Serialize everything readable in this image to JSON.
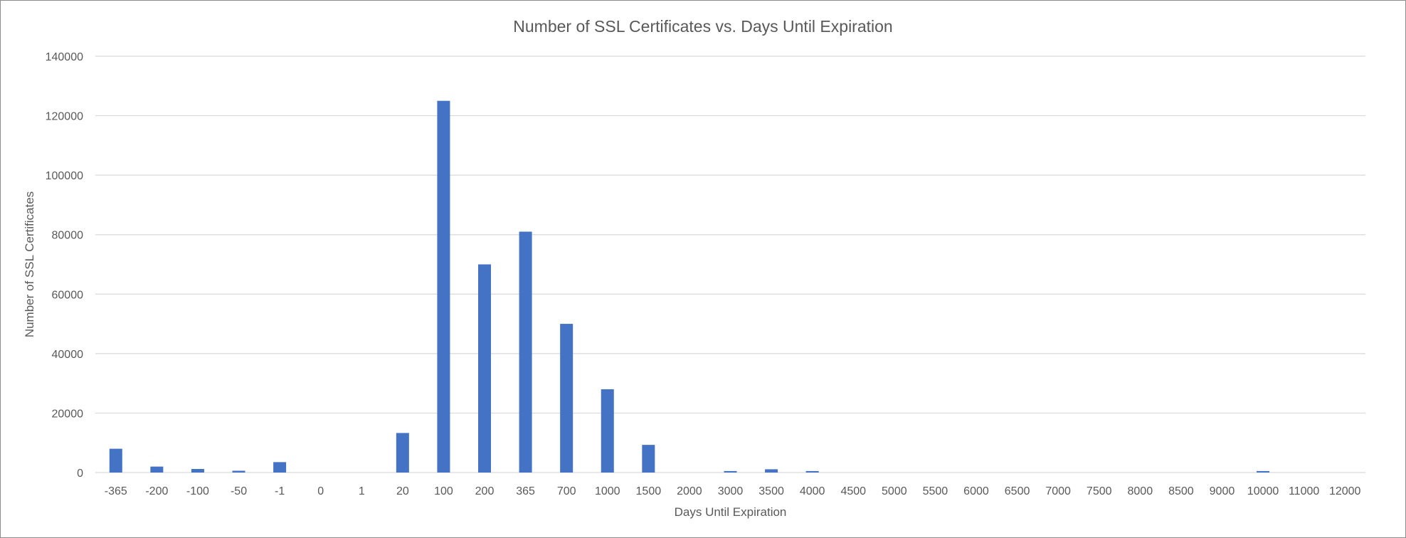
{
  "chart_data": {
    "type": "bar",
    "title": "Number of SSL Certificates vs. Days Until Expiration",
    "xlabel": "Days Until Expiration",
    "ylabel": "Number of SSL Certificates",
    "ylim": [
      0,
      140000
    ],
    "yticks": [
      0,
      20000,
      40000,
      60000,
      80000,
      100000,
      120000,
      140000
    ],
    "grid": true,
    "legend": "none",
    "bar_color": "#4472c4",
    "categories": [
      "-365",
      "-200",
      "-100",
      "-50",
      "-1",
      "0",
      "1",
      "20",
      "100",
      "200",
      "365",
      "700",
      "1000",
      "1500",
      "2000",
      "3000",
      "3500",
      "4000",
      "4500",
      "5000",
      "5500",
      "6000",
      "6500",
      "7000",
      "7500",
      "8000",
      "8500",
      "9000",
      "10000",
      "11000",
      "12000"
    ],
    "series": [
      {
        "values": [
          8000,
          2000,
          1200,
          600,
          3500,
          0,
          0,
          13300,
          125000,
          70000,
          81000,
          50000,
          28000,
          9300,
          0,
          500,
          1100,
          500,
          0,
          0,
          0,
          0,
          0,
          0,
          0,
          0,
          0,
          0,
          500,
          0,
          0
        ]
      }
    ]
  }
}
